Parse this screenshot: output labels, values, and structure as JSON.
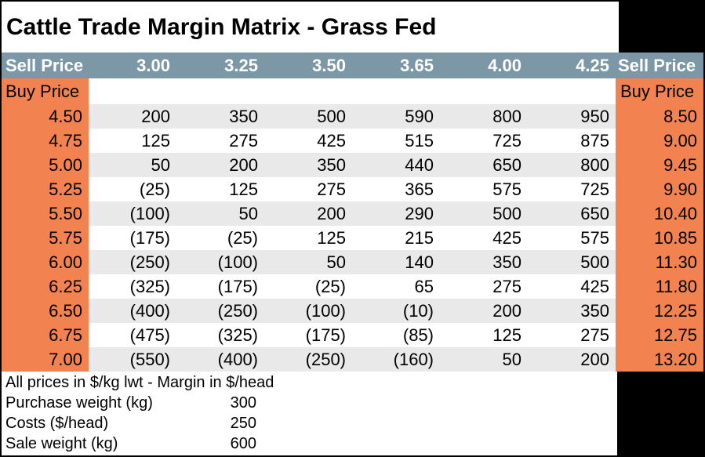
{
  "title": "Cattle Trade Margin Matrix - Grass Fed",
  "colors": {
    "header_bg": "#7C97A6",
    "side_column_bg": "#F28350",
    "stripe_bg": "#E9E9E9",
    "negative_text": "#FF0000",
    "frame": "#000000"
  },
  "table": {
    "left_header": "Sell Price",
    "right_header": "Sell Price",
    "left_row_header": "Buy Price",
    "right_row_header": "Buy Price",
    "sell_prices": [
      "3.00",
      "3.25",
      "3.50",
      "3.65",
      "4.00",
      "4.25"
    ],
    "rows": [
      {
        "buy": "4.50",
        "values": [
          "200",
          "350",
          "500",
          "590",
          "800",
          "950"
        ],
        "right": "8.50"
      },
      {
        "buy": "4.75",
        "values": [
          "125",
          "275",
          "425",
          "515",
          "725",
          "875"
        ],
        "right": "9.00"
      },
      {
        "buy": "5.00",
        "values": [
          "50",
          "200",
          "350",
          "440",
          "650",
          "800"
        ],
        "right": "9.45"
      },
      {
        "buy": "5.25",
        "values": [
          "(25)",
          "125",
          "275",
          "365",
          "575",
          "725"
        ],
        "right": "9.90"
      },
      {
        "buy": "5.50",
        "values": [
          "(100)",
          "50",
          "200",
          "290",
          "500",
          "650"
        ],
        "right": "10.40"
      },
      {
        "buy": "5.75",
        "values": [
          "(175)",
          "(25)",
          "125",
          "215",
          "425",
          "575"
        ],
        "right": "10.85"
      },
      {
        "buy": "6.00",
        "values": [
          "(250)",
          "(100)",
          "50",
          "140",
          "350",
          "500"
        ],
        "right": "11.30"
      },
      {
        "buy": "6.25",
        "values": [
          "(325)",
          "(175)",
          "(25)",
          "65",
          "275",
          "425"
        ],
        "right": "11.80"
      },
      {
        "buy": "6.50",
        "values": [
          "(400)",
          "(250)",
          "(100)",
          "(10)",
          "200",
          "350"
        ],
        "right": "12.25"
      },
      {
        "buy": "6.75",
        "values": [
          "(475)",
          "(325)",
          "(175)",
          "(85)",
          "125",
          "275"
        ],
        "right": "12.75"
      },
      {
        "buy": "7.00",
        "values": [
          "(550)",
          "(400)",
          "(250)",
          "(160)",
          "50",
          "200"
        ],
        "right": "13.20"
      }
    ]
  },
  "footer": {
    "note": "All prices in $/kg lwt - Margin in $/head",
    "params": [
      {
        "label": "Purchase weight (kg)",
        "value": "300"
      },
      {
        "label": "Costs ($/head)",
        "value": "250"
      },
      {
        "label": "Sale weight (kg)",
        "value": "600"
      }
    ]
  },
  "chart_data": {
    "type": "table",
    "title": "Cattle Trade Margin Matrix - Grass Fed",
    "columns_sell_price": [
      3.0,
      3.25,
      3.5,
      3.65,
      4.0,
      4.25
    ],
    "rows_buy_price": [
      4.5,
      4.75,
      5.0,
      5.25,
      5.5,
      5.75,
      6.0,
      6.25,
      6.5,
      6.75,
      7.0
    ],
    "right_axis_buy_price": [
      8.5,
      9.0,
      9.45,
      9.9,
      10.4,
      10.85,
      11.3,
      11.8,
      12.25,
      12.75,
      13.2
    ],
    "margins_per_head": [
      [
        200,
        350,
        500,
        590,
        800,
        950
      ],
      [
        125,
        275,
        425,
        515,
        725,
        875
      ],
      [
        50,
        200,
        350,
        440,
        650,
        800
      ],
      [
        -25,
        125,
        275,
        365,
        575,
        725
      ],
      [
        -100,
        50,
        200,
        290,
        500,
        650
      ],
      [
        -175,
        -25,
        125,
        215,
        425,
        575
      ],
      [
        -250,
        -100,
        50,
        140,
        350,
        500
      ],
      [
        -325,
        -175,
        -25,
        65,
        275,
        425
      ],
      [
        -400,
        -250,
        -100,
        -10,
        200,
        350
      ],
      [
        -475,
        -325,
        -175,
        -85,
        125,
        275
      ],
      [
        -550,
        -400,
        -250,
        -160,
        50,
        200
      ]
    ],
    "units_note": "All prices in $/kg lwt - Margin in $/head",
    "parameters": {
      "purchase_weight_kg": 300,
      "costs_per_head": 250,
      "sale_weight_kg": 600
    }
  }
}
